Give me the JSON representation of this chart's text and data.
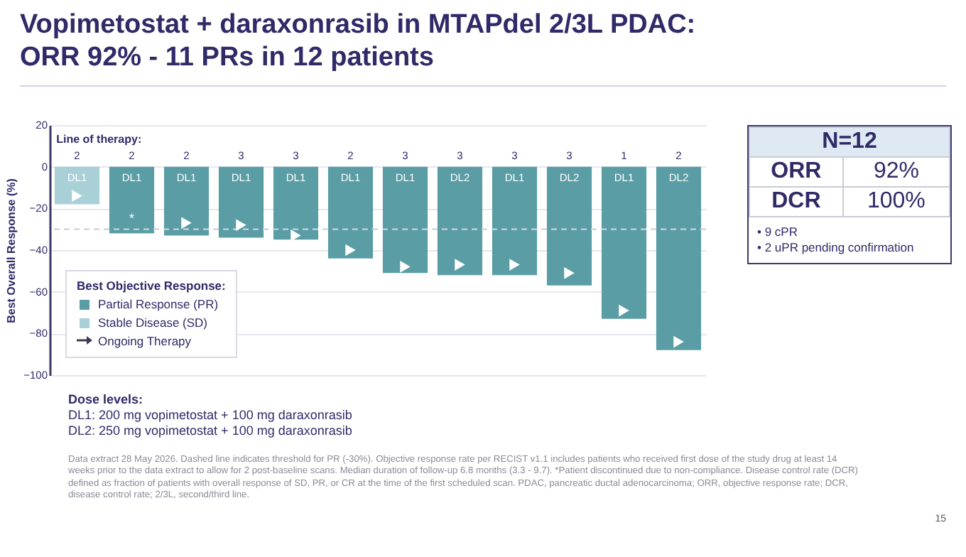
{
  "chart_data": [
    {
      "type": "bar",
      "title": "Vopimetostat + daraxonrasib in MTAPdel 2/3L PDAC:\nORR 92% - 11 PRs in 12 patients",
      "categories": [
        "DL1",
        "DL1",
        "DL1",
        "DL1",
        "DL1",
        "DL1",
        "DL1",
        "DL2",
        "DL1",
        "DL2",
        "DL1",
        "DL2"
      ],
      "series": [
        {
          "name": "Partial Response (PR)",
          "color": "#5a9da5",
          "values": [
            null,
            -32,
            -33,
            -34,
            -35,
            -44,
            -51,
            -52,
            -52,
            -57,
            -73,
            -88
          ],
          "value_labels": [
            null,
            "*",
            null,
            null,
            null,
            null,
            null,
            null,
            null,
            null,
            null,
            null
          ]
        },
        {
          "name": "Stable Disease (SD)",
          "color": "#a9d0d6",
          "values": [
            -18,
            null,
            null,
            null,
            null,
            null,
            null,
            null,
            null,
            null,
            null,
            null
          ]
        },
        {
          "type": "scatter",
          "marker": "triangle",
          "color": "#ffffff",
          "values": [
            -14,
            null,
            -27,
            -28,
            -33,
            -40,
            -48,
            -47,
            -47,
            -51,
            -69,
            -84
          ]
        }
      ],
      "ylabel": "Best Overall Response (%)",
      "ylim": [
        -100,
        20
      ],
      "yticks": [
        -100,
        -80,
        -60,
        -40,
        -20,
        0,
        20
      ],
      "grid": "y",
      "ref_lines": [
        {
          "axis": "y",
          "value": -30,
          "color": "#c9d3dc",
          "line_style": "dashed"
        }
      ],
      "legend": "left",
      "legend_title": "Best Objective Response:",
      "annotations": [
        "Dose levels:",
        "DL1: 200 mg vopimetostat + 100 mg daraxonrasib",
        "DL2: 250 mg vopimetostat + 100 mg daraxonrasib",
        "Data extract 28 May 2026. Dashed line indicates threshold for PR  (-30%). Objective response rate  per RECIST v1.1 includes patients who received first dose of the study drug at least 14 weeks prior to the data extract to allow for 2 post-baseline scans. Median duration of follow-up 6.8 months (3.3 - 9.7). *Patient discontinued due to non-compliance. Disease control rate (DCR) defined as fraction of patients with overall response of SD, PR, or CR at the time of the first scheduled scan. PDAC, pancreatic ductal adenocarcinoma; ORR, objective response rate; DCR, disease control rate; 2/3L, second/third line.",
        "15",
        "Line of therapy:",
        "2",
        "2",
        "2",
        "3",
        "3",
        "2",
        "3",
        "3",
        "3",
        "3",
        "1",
        "2",
        "Ongoing Therapy"
      ]
    },
    {
      "type": "other",
      "title": "N=12",
      "annotations": [
        "ORR",
        "92%",
        "DCR",
        "100%",
        "• 9 cPR",
        "• 2 uPR pending confirmation"
      ]
    }
  ]
}
